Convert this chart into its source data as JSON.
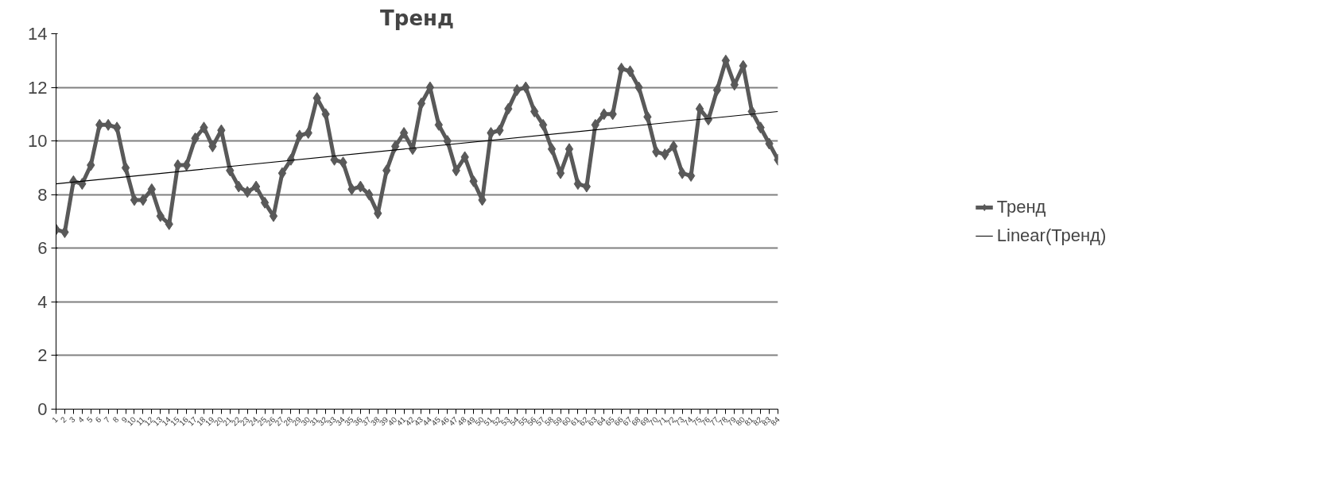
{
  "chart_data": {
    "type": "line",
    "title": "Тренд",
    "x": [
      1,
      2,
      3,
      4,
      5,
      6,
      7,
      8,
      9,
      10,
      11,
      12,
      13,
      14,
      15,
      16,
      17,
      18,
      19,
      20,
      21,
      22,
      23,
      24,
      25,
      26,
      27,
      28,
      29,
      30,
      31,
      32,
      33,
      34,
      35,
      36,
      37,
      38,
      39,
      40,
      41,
      42,
      43,
      44,
      45,
      46,
      47,
      48,
      49,
      50,
      51,
      52,
      53,
      54,
      55,
      56,
      57,
      58,
      59,
      60,
      61,
      62,
      63,
      64,
      65,
      66,
      67,
      68,
      69,
      70,
      71,
      72,
      73,
      74,
      75,
      76,
      77,
      78,
      79,
      80,
      81,
      82,
      83,
      84
    ],
    "xlim": [
      1,
      84
    ],
    "xticks": [
      1,
      2,
      3,
      4,
      5,
      6,
      7,
      8,
      9,
      10,
      11,
      12,
      13,
      14,
      15,
      16,
      17,
      18,
      19,
      20,
      21,
      22,
      23,
      24,
      25,
      26,
      27,
      28,
      29,
      30,
      31,
      32,
      33,
      34,
      35,
      36,
      37,
      38,
      39,
      40,
      41,
      42,
      43,
      44,
      45,
      46,
      47,
      48,
      49,
      50,
      51,
      52,
      53,
      54,
      55,
      56,
      57,
      58,
      59,
      60,
      61,
      62,
      63,
      64,
      65,
      66,
      67,
      68,
      69,
      70,
      71,
      72,
      73,
      74,
      75,
      76,
      77,
      78,
      79,
      80,
      81,
      82,
      83,
      84
    ],
    "ylim": [
      0,
      14
    ],
    "yticks": [
      0,
      2,
      4,
      6,
      8,
      10,
      12,
      14
    ],
    "grid": "y",
    "legend": "right",
    "marker": "diamond",
    "line_style": "solid",
    "series": [
      {
        "name": "Тренд",
        "color": "#595959",
        "values": [
          6.7,
          6.6,
          8.5,
          8.4,
          9.1,
          10.6,
          10.6,
          10.5,
          9.0,
          7.8,
          7.8,
          8.2,
          7.2,
          6.9,
          9.1,
          9.1,
          10.1,
          10.5,
          9.8,
          10.4,
          8.9,
          8.3,
          8.1,
          8.3,
          7.7,
          7.2,
          8.8,
          9.3,
          10.2,
          10.3,
          11.6,
          11.0,
          9.3,
          9.2,
          8.2,
          8.3,
          8.0,
          7.3,
          8.9,
          9.8,
          10.3,
          9.7,
          11.4,
          12.0,
          10.6,
          10.0,
          8.9,
          9.4,
          8.5,
          7.8,
          10.3,
          10.4,
          11.2,
          11.9,
          12.0,
          11.1,
          10.6,
          9.7,
          8.8,
          9.7,
          8.4,
          8.3,
          10.6,
          11.0,
          11.0,
          12.7,
          12.6,
          12.0,
          10.9,
          9.6,
          9.5,
          9.8,
          8.8,
          8.7,
          11.2,
          10.8,
          11.9,
          13.0,
          12.1,
          12.8,
          11.1,
          10.5,
          9.9,
          9.3
        ]
      },
      {
        "name": "Linear(Тренд)",
        "type": "line",
        "color": "#000000",
        "marker": "none",
        "x": [
          1,
          84
        ],
        "values": [
          8.4,
          11.1
        ]
      }
    ]
  }
}
